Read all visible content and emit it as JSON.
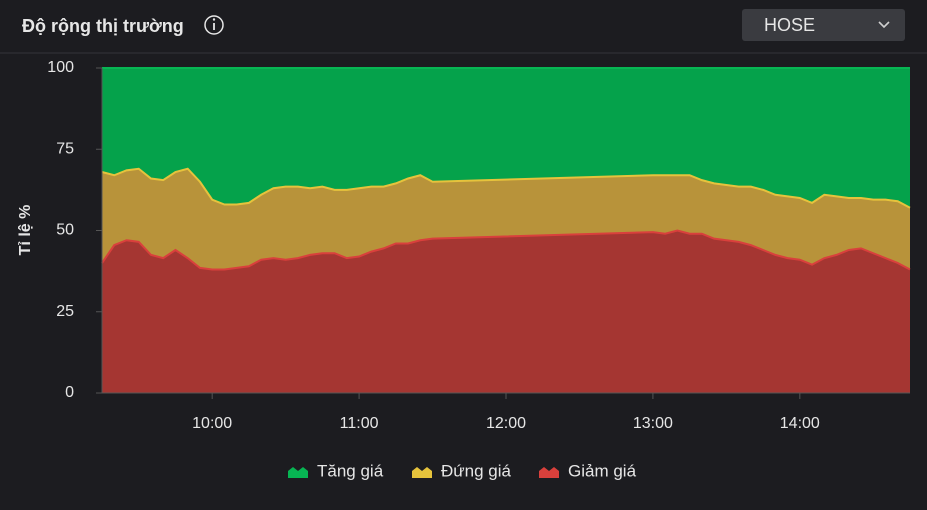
{
  "header": {
    "dropdown": "HOSE"
  },
  "chart_data": {
    "type": "stacked-area",
    "title": "Độ rộng thị trường",
    "y_label": "Tỉ lệ %",
    "x": [
      555,
      560,
      565,
      570,
      575,
      580,
      585,
      590,
      595,
      600,
      605,
      610,
      615,
      620,
      625,
      630,
      635,
      640,
      645,
      650,
      655,
      660,
      665,
      670,
      675,
      680,
      685,
      690,
      780,
      785,
      790,
      795,
      800,
      805,
      810,
      815,
      820,
      825,
      830,
      835,
      840,
      845,
      850,
      855,
      860,
      865,
      870,
      875,
      880,
      885
    ],
    "xlim": [
      555,
      885
    ],
    "xticks": [
      {
        "value": 600,
        "label": "10:00"
      },
      {
        "value": 660,
        "label": "11:00"
      },
      {
        "value": 720,
        "label": "12:00"
      },
      {
        "value": 780,
        "label": "13:00"
      },
      {
        "value": 840,
        "label": "14:00"
      }
    ],
    "ylim": [
      0,
      100
    ],
    "yticks": [
      0,
      25,
      50,
      75,
      100
    ],
    "grid": false,
    "legend": "bottom",
    "series": [
      {
        "name": "Tăng giá",
        "color": "#05a24b",
        "line_color": "#07b553",
        "values": [
          32,
          33,
          31.5,
          31,
          34,
          34.5,
          32,
          31,
          35,
          40.5,
          42,
          42,
          41.5,
          39,
          37,
          36.5,
          36.5,
          37,
          36.5,
          37.5,
          37.5,
          37,
          36.5,
          36.5,
          35.5,
          34,
          33,
          35,
          33,
          33,
          33,
          33,
          34.5,
          35.5,
          36,
          36.5,
          36.5,
          37.5,
          39,
          39.5,
          40,
          41.5,
          39,
          39.5,
          40,
          40,
          40.5,
          40.5,
          41,
          43
        ]
      },
      {
        "name": "Đứng giá",
        "color": "#b8933a",
        "line_color": "#e6c33c",
        "values": [
          28,
          21.5,
          21.5,
          22.5,
          23.5,
          24,
          24,
          27.5,
          26.5,
          21.5,
          20,
          19.5,
          19.5,
          20,
          21.5,
          22.5,
          22,
          20.5,
          20.5,
          19.5,
          21,
          21,
          20,
          19,
          18.5,
          20,
          20,
          17.5,
          17.5,
          18,
          17,
          18,
          16.5,
          17,
          17,
          17,
          18,
          18.5,
          18.5,
          19,
          19,
          19,
          19.5,
          18,
          16,
          15.5,
          16.5,
          18,
          19,
          19
        ]
      },
      {
        "name": "Giảm giá",
        "color": "#a53632",
        "line_color": "#d9403c",
        "values": [
          40,
          45.5,
          47,
          46.5,
          42.5,
          41.5,
          44,
          41.5,
          38.5,
          38,
          38,
          38.5,
          39,
          41,
          41.5,
          41,
          41.5,
          42.5,
          43,
          43,
          41.5,
          42,
          43.5,
          44.5,
          46,
          46,
          47,
          47.5,
          49.5,
          49,
          50,
          49,
          49,
          47.5,
          47,
          46.5,
          45.5,
          44,
          42.5,
          41.5,
          41,
          39.5,
          41.5,
          42.5,
          44,
          44.5,
          43,
          41.5,
          40,
          38
        ]
      }
    ]
  }
}
